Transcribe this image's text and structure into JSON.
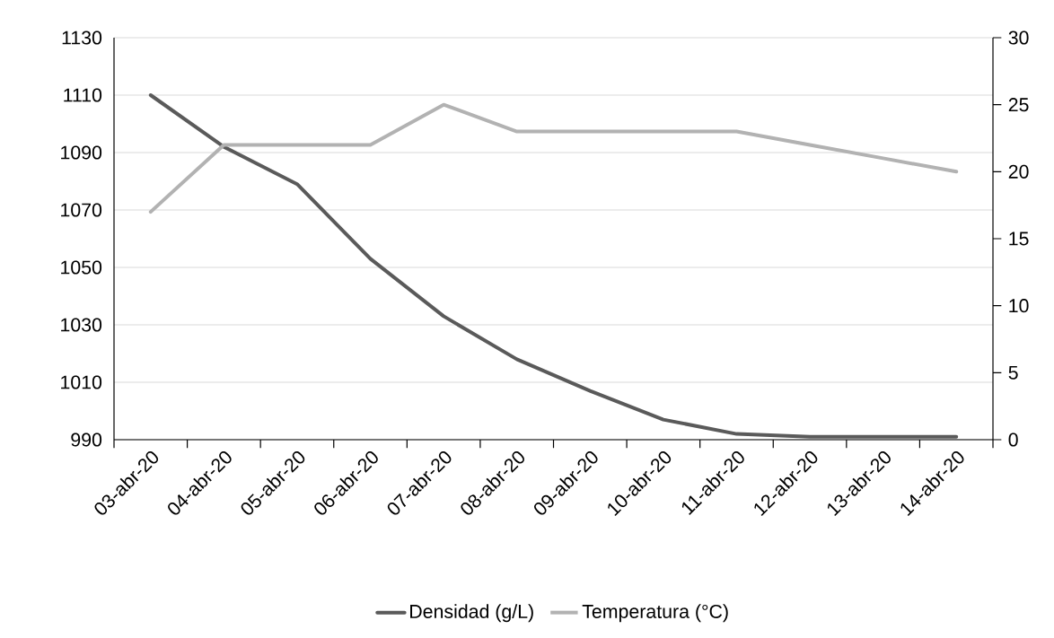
{
  "chart_data": {
    "type": "line",
    "categories": [
      "03-abr-20",
      "04-abr-20",
      "05-abr-20",
      "06-abr-20",
      "07-abr-20",
      "08-abr-20",
      "09-abr-20",
      "10-abr-20",
      "11-abr-20",
      "12-abr-20",
      "13-abr-20",
      "14-abr-20"
    ],
    "series": [
      {
        "name": "Densidad (g/L)",
        "color": "#5a5a5a",
        "values": [
          1110,
          1092,
          1079,
          1053,
          1033,
          1018,
          1007,
          997,
          992,
          991,
          991,
          991
        ]
      },
      {
        "name": "Temperatura (°C)",
        "color": "#b2b2b2",
        "axis": "y2",
        "values": [
          17,
          22,
          22,
          22,
          25,
          23,
          23,
          23,
          23,
          22,
          21,
          20
        ]
      }
    ],
    "ylim": [
      990,
      1130
    ],
    "yticks": [
      990,
      1010,
      1030,
      1050,
      1070,
      1090,
      1110,
      1130
    ],
    "y2lim": [
      0,
      30
    ],
    "y2ticks": [
      0,
      5,
      10,
      15,
      20,
      25,
      30
    ],
    "grid": "y",
    "legend": "bottom",
    "marker": "none",
    "line_style": "solid"
  }
}
